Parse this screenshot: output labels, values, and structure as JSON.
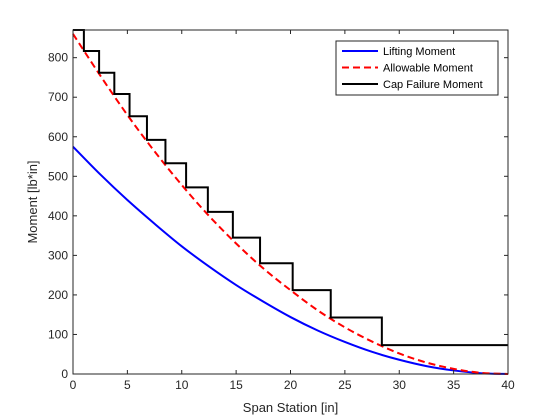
{
  "chart_data": {
    "type": "line",
    "title": "",
    "xlabel": "Span Station [in]",
    "ylabel": "Moment [lb*in]",
    "xlim": [
      0,
      40
    ],
    "ylim": [
      0,
      870
    ],
    "x_ticks": [
      0,
      5,
      10,
      15,
      20,
      25,
      30,
      35,
      40
    ],
    "y_ticks": [
      0,
      100,
      200,
      300,
      400,
      500,
      600,
      700,
      800
    ],
    "grid": false,
    "legend_position": "top-right",
    "series": [
      {
        "name": "Lifting Moment",
        "color": "#0000ff",
        "style": "solid",
        "x": [
          0,
          2.5,
          5,
          7.5,
          10,
          12.5,
          15,
          17.5,
          20,
          22.5,
          25,
          27.5,
          30,
          32.5,
          35,
          37.5,
          40
        ],
        "y": [
          575,
          505,
          440,
          380,
          323,
          272,
          225,
          183,
          144,
          110,
          81,
          56,
          36,
          20,
          9,
          2,
          0
        ]
      },
      {
        "name": "Allowable Moment",
        "color": "#ff0000",
        "style": "dashed",
        "x": [
          0,
          2.5,
          5,
          7.5,
          10,
          12.5,
          15,
          17.5,
          20,
          22.5,
          25,
          27.5,
          30,
          32.5,
          35,
          37.5,
          40
        ],
        "y": [
          860,
          755,
          655,
          563,
          478,
          400,
          330,
          267,
          212,
          161,
          118,
          82,
          52,
          29,
          13,
          3,
          0
        ]
      },
      {
        "name": "Cap Failure Moment",
        "color": "#000000",
        "style": "step",
        "x": [
          0,
          1,
          1,
          2.4,
          2.4,
          3.8,
          3.8,
          5.2,
          5.2,
          6.8,
          6.8,
          8.5,
          8.5,
          10.4,
          10.4,
          12.4,
          12.4,
          14.7,
          14.7,
          17.2,
          17.2,
          20.2,
          20.2,
          23.7,
          23.7,
          28.4,
          28.4,
          40
        ],
        "y": [
          870,
          870,
          817,
          817,
          762,
          762,
          708,
          708,
          652,
          652,
          592,
          592,
          533,
          533,
          472,
          472,
          410,
          410,
          345,
          345,
          280,
          280,
          212,
          212,
          143,
          143,
          73,
          73
        ]
      }
    ]
  }
}
